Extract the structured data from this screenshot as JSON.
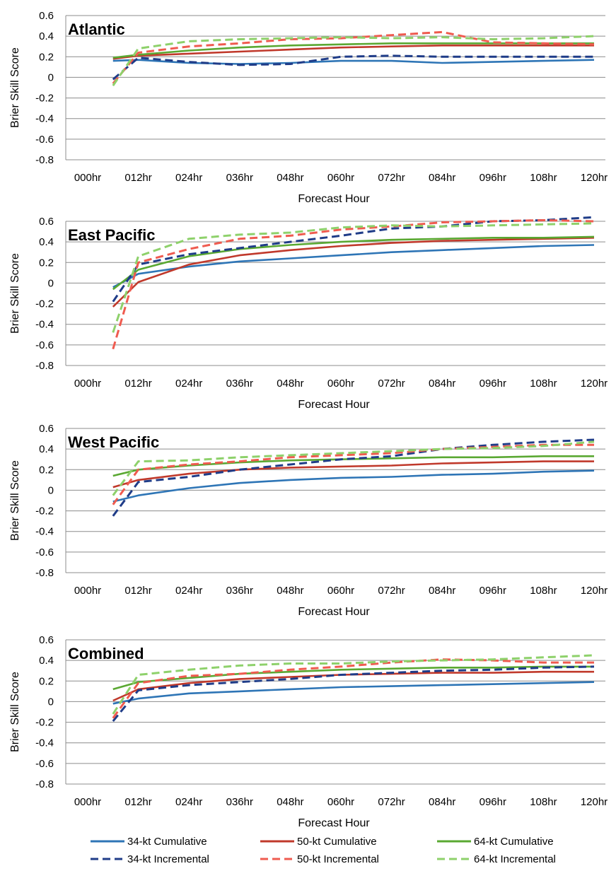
{
  "chart_data": [
    {
      "type": "line",
      "title": "Atlantic",
      "xlabel": "Forecast Hour",
      "ylabel": "Brier Skill Score",
      "ylim": [
        -0.8,
        0.6
      ],
      "yticks": [
        "0.6",
        "0.4",
        "0.2",
        "0",
        "-0.2",
        "-0.4",
        "-0.6",
        "-0.8"
      ],
      "categories": [
        "000hr",
        "012hr",
        "024hr",
        "036hr",
        "048hr",
        "060hr",
        "072hr",
        "084hr",
        "096hr",
        "108hr",
        "120hr"
      ],
      "grid": true,
      "series": [
        {
          "name": "34-kt Cumulative",
          "color": "#2e75b6",
          "dash": false,
          "x": [
            6,
            12,
            24,
            36,
            48,
            60,
            72,
            84,
            96,
            108,
            120
          ],
          "values": [
            0.16,
            0.17,
            0.14,
            0.13,
            0.14,
            0.16,
            0.16,
            0.14,
            0.15,
            0.16,
            0.17
          ]
        },
        {
          "name": "50-kt Cumulative",
          "color": "#c0392b",
          "dash": false,
          "x": [
            6,
            12,
            24,
            36,
            48,
            60,
            72,
            84,
            96,
            108,
            120
          ],
          "values": [
            0.18,
            0.21,
            0.23,
            0.25,
            0.27,
            0.29,
            0.3,
            0.31,
            0.31,
            0.31,
            0.31
          ]
        },
        {
          "name": "64-kt Cumulative",
          "color": "#5aa832",
          "dash": false,
          "x": [
            6,
            12,
            24,
            36,
            48,
            60,
            72,
            84,
            96,
            108,
            120
          ],
          "values": [
            0.19,
            0.22,
            0.26,
            0.29,
            0.31,
            0.32,
            0.33,
            0.33,
            0.33,
            0.33,
            0.33
          ]
        },
        {
          "name": "34-kt Incremental",
          "color": "#1f3c88",
          "dash": true,
          "x": [
            6,
            12,
            24,
            36,
            48,
            60,
            72,
            84,
            96,
            108,
            120
          ],
          "values": [
            -0.02,
            0.19,
            0.15,
            0.12,
            0.13,
            0.2,
            0.21,
            0.2,
            0.2,
            0.2,
            0.2
          ]
        },
        {
          "name": "50-kt Incremental",
          "color": "#ef5b4f",
          "dash": true,
          "x": [
            6,
            12,
            24,
            36,
            48,
            60,
            72,
            84,
            96,
            108,
            120
          ],
          "values": [
            -0.06,
            0.24,
            0.3,
            0.33,
            0.37,
            0.38,
            0.41,
            0.44,
            0.34,
            0.33,
            0.32
          ]
        },
        {
          "name": "64-kt Incremental",
          "color": "#8ed16b",
          "dash": true,
          "x": [
            6,
            12,
            24,
            36,
            48,
            60,
            72,
            84,
            96,
            108,
            120
          ],
          "values": [
            -0.08,
            0.28,
            0.35,
            0.37,
            0.38,
            0.39,
            0.38,
            0.39,
            0.37,
            0.38,
            0.4
          ]
        }
      ]
    },
    {
      "type": "line",
      "title": "East Pacific",
      "xlabel": "Forecast Hour",
      "ylabel": "Brier Skill Score",
      "ylim": [
        -0.8,
        0.6
      ],
      "yticks": [
        "0.6",
        "0.4",
        "0.2",
        "0",
        "-0.2",
        "-0.4",
        "-0.6",
        "-0.8"
      ],
      "categories": [
        "000hr",
        "012hr",
        "024hr",
        "036hr",
        "048hr",
        "060hr",
        "072hr",
        "084hr",
        "096hr",
        "108hr",
        "120hr"
      ],
      "grid": true,
      "series": [
        {
          "name": "34-kt Cumulative",
          "color": "#2e75b6",
          "dash": false,
          "x": [
            6,
            12,
            24,
            36,
            48,
            60,
            72,
            84,
            96,
            108,
            120
          ],
          "values": [
            -0.04,
            0.09,
            0.16,
            0.21,
            0.24,
            0.27,
            0.3,
            0.32,
            0.34,
            0.36,
            0.37
          ]
        },
        {
          "name": "50-kt Cumulative",
          "color": "#c0392b",
          "dash": false,
          "x": [
            6,
            12,
            24,
            36,
            48,
            60,
            72,
            84,
            96,
            108,
            120
          ],
          "values": [
            -0.23,
            0.01,
            0.18,
            0.27,
            0.32,
            0.36,
            0.39,
            0.41,
            0.42,
            0.43,
            0.44
          ]
        },
        {
          "name": "64-kt Cumulative",
          "color": "#5aa832",
          "dash": false,
          "x": [
            6,
            12,
            24,
            36,
            48,
            60,
            72,
            84,
            96,
            108,
            120
          ],
          "values": [
            -0.06,
            0.13,
            0.26,
            0.33,
            0.37,
            0.4,
            0.42,
            0.43,
            0.44,
            0.44,
            0.45
          ]
        },
        {
          "name": "34-kt Incremental",
          "color": "#1f3c88",
          "dash": true,
          "x": [
            6,
            12,
            24,
            36,
            48,
            60,
            72,
            84,
            96,
            108,
            120
          ],
          "values": [
            -0.18,
            0.18,
            0.28,
            0.34,
            0.4,
            0.46,
            0.53,
            0.55,
            0.6,
            0.61,
            0.64
          ]
        },
        {
          "name": "50-kt Incremental",
          "color": "#ef5b4f",
          "dash": true,
          "x": [
            6,
            12,
            24,
            36,
            48,
            60,
            72,
            84,
            96,
            108,
            120
          ],
          "values": [
            -0.64,
            0.2,
            0.33,
            0.43,
            0.46,
            0.52,
            0.55,
            0.59,
            0.6,
            0.61,
            0.6
          ]
        },
        {
          "name": "64-kt Incremental",
          "color": "#8ed16b",
          "dash": true,
          "x": [
            6,
            12,
            24,
            36,
            48,
            60,
            72,
            84,
            96,
            108,
            120
          ],
          "values": [
            -0.48,
            0.26,
            0.43,
            0.47,
            0.49,
            0.54,
            0.56,
            0.55,
            0.56,
            0.57,
            0.58
          ]
        }
      ]
    },
    {
      "type": "line",
      "title": "West Pacific",
      "xlabel": "Forecast Hour",
      "ylabel": "Brier Skill Score",
      "ylim": [
        -0.8,
        0.6
      ],
      "yticks": [
        "0.6",
        "0.4",
        "0.2",
        "0",
        "-0.2",
        "-0.4",
        "-0.6",
        "-0.8"
      ],
      "categories": [
        "000hr",
        "012hr",
        "024hr",
        "036hr",
        "048hr",
        "060hr",
        "072hr",
        "084hr",
        "096hr",
        "108hr",
        "120hr"
      ],
      "grid": true,
      "series": [
        {
          "name": "34-kt Cumulative",
          "color": "#2e75b6",
          "dash": false,
          "x": [
            6,
            12,
            24,
            36,
            48,
            60,
            72,
            84,
            96,
            108,
            120
          ],
          "values": [
            -0.11,
            -0.05,
            0.02,
            0.07,
            0.1,
            0.12,
            0.13,
            0.15,
            0.16,
            0.18,
            0.19
          ]
        },
        {
          "name": "50-kt Cumulative",
          "color": "#c0392b",
          "dash": false,
          "x": [
            6,
            12,
            24,
            36,
            48,
            60,
            72,
            84,
            96,
            108,
            120
          ],
          "values": [
            0.03,
            0.1,
            0.16,
            0.2,
            0.22,
            0.23,
            0.24,
            0.26,
            0.27,
            0.28,
            0.28
          ]
        },
        {
          "name": "64-kt Cumulative",
          "color": "#5aa832",
          "dash": false,
          "x": [
            6,
            12,
            24,
            36,
            48,
            60,
            72,
            84,
            96,
            108,
            120
          ],
          "values": [
            0.14,
            0.2,
            0.24,
            0.27,
            0.29,
            0.3,
            0.31,
            0.32,
            0.32,
            0.33,
            0.33
          ]
        },
        {
          "name": "34-kt Incremental",
          "color": "#1f3c88",
          "dash": true,
          "x": [
            6,
            12,
            24,
            36,
            48,
            60,
            72,
            84,
            96,
            108,
            120
          ],
          "values": [
            -0.25,
            0.08,
            0.13,
            0.2,
            0.25,
            0.3,
            0.33,
            0.4,
            0.44,
            0.47,
            0.49
          ]
        },
        {
          "name": "50-kt Incremental",
          "color": "#ef5b4f",
          "dash": true,
          "x": [
            6,
            12,
            24,
            36,
            48,
            60,
            72,
            84,
            96,
            108,
            120
          ],
          "values": [
            -0.14,
            0.2,
            0.25,
            0.28,
            0.32,
            0.34,
            0.36,
            0.4,
            0.42,
            0.44,
            0.44
          ]
        },
        {
          "name": "64-kt Incremental",
          "color": "#8ed16b",
          "dash": true,
          "x": [
            6,
            12,
            24,
            36,
            48,
            60,
            72,
            84,
            96,
            108,
            120
          ],
          "values": [
            -0.05,
            0.28,
            0.29,
            0.32,
            0.34,
            0.36,
            0.38,
            0.4,
            0.41,
            0.43,
            0.47
          ]
        }
      ]
    },
    {
      "type": "line",
      "title": "Combined",
      "xlabel": "Forecast Hour",
      "ylabel": "Brier Skill Score",
      "ylim": [
        -0.8,
        0.6
      ],
      "yticks": [
        "0.6",
        "0.4",
        "0.2",
        "0",
        "-0.2",
        "-0.4",
        "-0.6",
        "-0.8"
      ],
      "categories": [
        "000hr",
        "012hr",
        "024hr",
        "036hr",
        "048hr",
        "060hr",
        "072hr",
        "084hr",
        "096hr",
        "108hr",
        "120hr"
      ],
      "grid": true,
      "series": [
        {
          "name": "34-kt Cumulative",
          "color": "#2e75b6",
          "dash": false,
          "x": [
            6,
            12,
            24,
            36,
            48,
            60,
            72,
            84,
            96,
            108,
            120
          ],
          "values": [
            -0.02,
            0.03,
            0.08,
            0.1,
            0.12,
            0.14,
            0.15,
            0.16,
            0.17,
            0.18,
            0.19
          ]
        },
        {
          "name": "50-kt Cumulative",
          "color": "#c0392b",
          "dash": false,
          "x": [
            6,
            12,
            24,
            36,
            48,
            60,
            72,
            84,
            96,
            108,
            120
          ],
          "values": [
            0.01,
            0.12,
            0.18,
            0.22,
            0.24,
            0.26,
            0.27,
            0.28,
            0.28,
            0.29,
            0.29
          ]
        },
        {
          "name": "64-kt Cumulative",
          "color": "#5aa832",
          "dash": false,
          "x": [
            6,
            12,
            24,
            36,
            48,
            60,
            72,
            84,
            96,
            108,
            120
          ],
          "values": [
            0.12,
            0.19,
            0.23,
            0.27,
            0.29,
            0.31,
            0.32,
            0.33,
            0.33,
            0.34,
            0.34
          ]
        },
        {
          "name": "34-kt Incremental",
          "color": "#1f3c88",
          "dash": true,
          "x": [
            6,
            12,
            24,
            36,
            48,
            60,
            72,
            84,
            96,
            108,
            120
          ],
          "values": [
            -0.19,
            0.11,
            0.16,
            0.19,
            0.22,
            0.26,
            0.28,
            0.3,
            0.31,
            0.33,
            0.34
          ]
        },
        {
          "name": "50-kt Incremental",
          "color": "#ef5b4f",
          "dash": true,
          "x": [
            6,
            12,
            24,
            36,
            48,
            60,
            72,
            84,
            96,
            108,
            120
          ],
          "values": [
            -0.16,
            0.18,
            0.25,
            0.27,
            0.31,
            0.34,
            0.38,
            0.41,
            0.4,
            0.38,
            0.38
          ]
        },
        {
          "name": "64-kt Incremental",
          "color": "#8ed16b",
          "dash": true,
          "x": [
            6,
            12,
            24,
            36,
            48,
            60,
            72,
            84,
            96,
            108,
            120
          ],
          "values": [
            -0.12,
            0.26,
            0.31,
            0.35,
            0.37,
            0.37,
            0.39,
            0.4,
            0.41,
            0.43,
            0.45
          ]
        }
      ]
    }
  ],
  "legend": [
    {
      "name": "34-kt Cumulative",
      "color": "#2e75b6",
      "dash": false
    },
    {
      "name": "50-kt Cumulative",
      "color": "#c0392b",
      "dash": false
    },
    {
      "name": "64-kt Cumulative",
      "color": "#5aa832",
      "dash": false
    },
    {
      "name": "34-kt Incremental",
      "color": "#1f3c88",
      "dash": true
    },
    {
      "name": "50-kt Incremental",
      "color": "#ef5b4f",
      "dash": true
    },
    {
      "name": "64-kt Incremental",
      "color": "#8ed16b",
      "dash": true
    }
  ]
}
